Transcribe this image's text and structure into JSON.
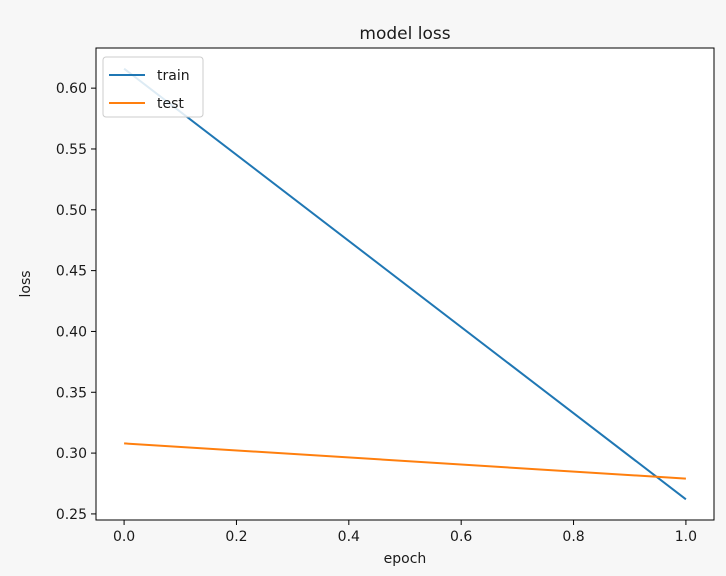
{
  "chart_data": {
    "type": "line",
    "title": "model loss",
    "xlabel": "epoch",
    "ylabel": "loss",
    "x": [
      0.0,
      1.0
    ],
    "series": [
      {
        "name": "train",
        "values": [
          0.616,
          0.262
        ],
        "color": "#1f77b4"
      },
      {
        "name": "test",
        "values": [
          0.308,
          0.279
        ],
        "color": "#ff7f0e"
      }
    ],
    "xlim": [
      -0.05,
      1.05
    ],
    "ylim": [
      0.245,
      0.633
    ],
    "xticks": [
      0.0,
      0.2,
      0.4,
      0.6,
      0.8,
      1.0
    ],
    "xtick_labels": [
      "0.0",
      "0.2",
      "0.4",
      "0.6",
      "0.8",
      "1.0"
    ],
    "yticks": [
      0.25,
      0.3,
      0.35,
      0.4,
      0.45,
      0.5,
      0.55,
      0.6
    ],
    "ytick_labels": [
      "0.25",
      "0.30",
      "0.35",
      "0.40",
      "0.45",
      "0.50",
      "0.55",
      "0.60"
    ],
    "grid": false,
    "legend_position": "upper left"
  }
}
